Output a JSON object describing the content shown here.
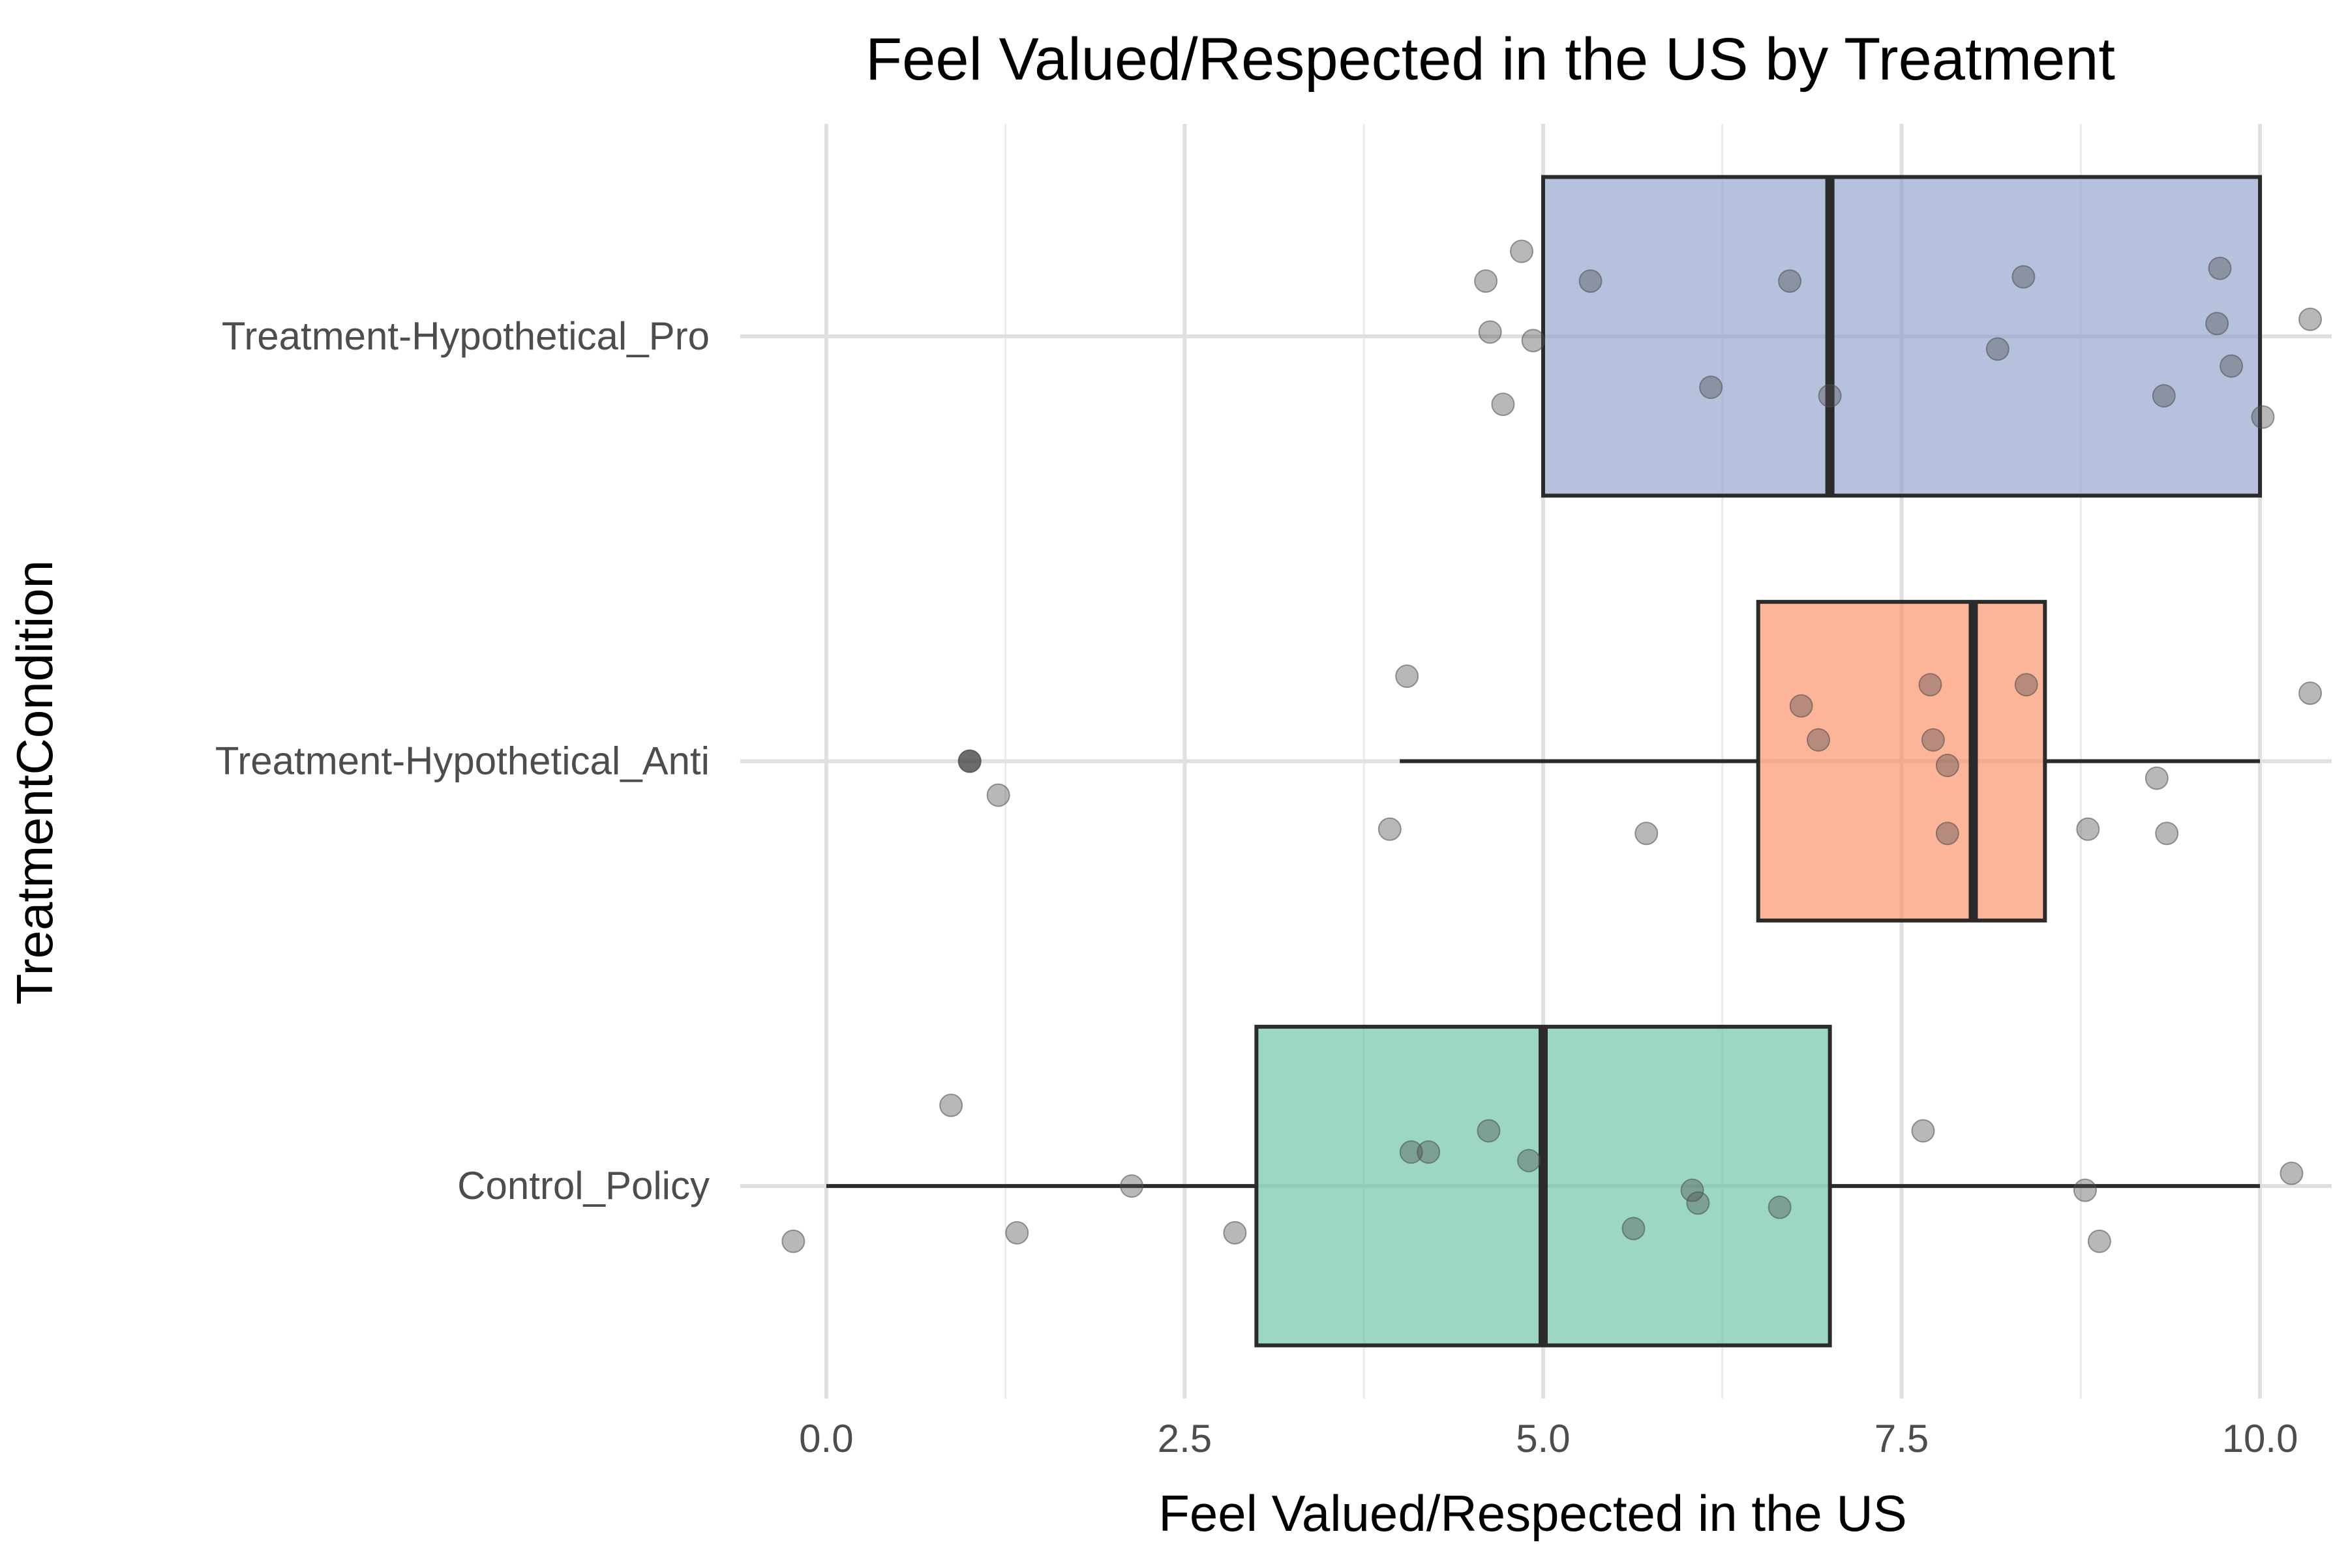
{
  "chart_data": {
    "type": "boxplot",
    "title": "Feel Valued/Respected in the US by Treatment",
    "xlabel": "Feel Valued/Respected in the US",
    "ylabel": "TreatmentCondition",
    "orientation": "horizontal",
    "xlim": [
      -0.6,
      10.5
    ],
    "xticks": [
      0.0,
      2.5,
      5.0,
      7.5,
      10.0
    ],
    "xtick_labels": [
      "0.0",
      "2.5",
      "5.0",
      "7.5",
      "10.0"
    ],
    "grid": true,
    "legend": "none",
    "categories": [
      "Control_Policy",
      "Treatment-Hypothetical_Anti",
      "Treatment-Hypothetical_Pro"
    ],
    "boxes": [
      {
        "category": "Control_Policy",
        "color": "#66c2a5",
        "whisker_low": 0,
        "q1": 3,
        "median": 5,
        "q3": 7,
        "whisker_high": 10,
        "outliers": []
      },
      {
        "category": "Treatment-Hypothetical_Anti",
        "color": "#fc8d62",
        "whisker_low": 4,
        "q1": 6.5,
        "median": 8,
        "q3": 8.5,
        "whisker_high": 10,
        "outliers": [
          1
        ]
      },
      {
        "category": "Treatment-Hypothetical_Pro",
        "color": "#8da0cb",
        "whisker_low": 5,
        "q1": 5,
        "median": 7,
        "q3": 10,
        "whisker_high": 10,
        "outliers": []
      }
    ],
    "jitter_points": [
      {
        "category": "Control_Policy",
        "x": -0.23,
        "y_jitter": 0.13
      },
      {
        "category": "Control_Policy",
        "x": 0.87,
        "y_jitter": -0.19
      },
      {
        "category": "Control_Policy",
        "x": 1.33,
        "y_jitter": 0.11
      },
      {
        "category": "Control_Policy",
        "x": 2.13,
        "y_jitter": 0.0
      },
      {
        "category": "Control_Policy",
        "x": 2.85,
        "y_jitter": 0.11
      },
      {
        "category": "Control_Policy",
        "x": 4.08,
        "y_jitter": -0.08
      },
      {
        "category": "Control_Policy",
        "x": 4.2,
        "y_jitter": -0.08
      },
      {
        "category": "Control_Policy",
        "x": 4.62,
        "y_jitter": -0.13
      },
      {
        "category": "Control_Policy",
        "x": 4.9,
        "y_jitter": -0.06
      },
      {
        "category": "Control_Policy",
        "x": 5.63,
        "y_jitter": 0.1
      },
      {
        "category": "Control_Policy",
        "x": 6.04,
        "y_jitter": 0.01
      },
      {
        "category": "Control_Policy",
        "x": 6.08,
        "y_jitter": 0.04
      },
      {
        "category": "Control_Policy",
        "x": 6.65,
        "y_jitter": 0.05
      },
      {
        "category": "Control_Policy",
        "x": 7.65,
        "y_jitter": -0.13
      },
      {
        "category": "Control_Policy",
        "x": 8.78,
        "y_jitter": 0.01
      },
      {
        "category": "Control_Policy",
        "x": 8.88,
        "y_jitter": 0.13
      },
      {
        "category": "Control_Policy",
        "x": 10.22,
        "y_jitter": -0.03
      },
      {
        "category": "Treatment-Hypothetical_Anti",
        "x": 1.0,
        "y_jitter": 0.0
      },
      {
        "category": "Treatment-Hypothetical_Anti",
        "x": 1.0,
        "y_jitter": 0.0
      },
      {
        "category": "Treatment-Hypothetical_Anti",
        "x": 1.2,
        "y_jitter": 0.08
      },
      {
        "category": "Treatment-Hypothetical_Anti",
        "x": 3.93,
        "y_jitter": 0.16
      },
      {
        "category": "Treatment-Hypothetical_Anti",
        "x": 4.05,
        "y_jitter": -0.2
      },
      {
        "category": "Treatment-Hypothetical_Anti",
        "x": 5.72,
        "y_jitter": 0.17
      },
      {
        "category": "Treatment-Hypothetical_Anti",
        "x": 6.8,
        "y_jitter": -0.13
      },
      {
        "category": "Treatment-Hypothetical_Anti",
        "x": 6.92,
        "y_jitter": -0.05
      },
      {
        "category": "Treatment-Hypothetical_Anti",
        "x": 7.7,
        "y_jitter": -0.18
      },
      {
        "category": "Treatment-Hypothetical_Anti",
        "x": 7.72,
        "y_jitter": -0.05
      },
      {
        "category": "Treatment-Hypothetical_Anti",
        "x": 7.82,
        "y_jitter": 0.01
      },
      {
        "category": "Treatment-Hypothetical_Anti",
        "x": 7.82,
        "y_jitter": 0.17
      },
      {
        "category": "Treatment-Hypothetical_Anti",
        "x": 8.37,
        "y_jitter": -0.18
      },
      {
        "category": "Treatment-Hypothetical_Anti",
        "x": 8.8,
        "y_jitter": 0.16
      },
      {
        "category": "Treatment-Hypothetical_Anti",
        "x": 9.28,
        "y_jitter": 0.04
      },
      {
        "category": "Treatment-Hypothetical_Anti",
        "x": 9.35,
        "y_jitter": 0.17
      },
      {
        "category": "Treatment-Hypothetical_Anti",
        "x": 10.35,
        "y_jitter": -0.16
      },
      {
        "category": "Treatment-Hypothetical_Pro",
        "x": 4.6,
        "y_jitter": -0.13
      },
      {
        "category": "Treatment-Hypothetical_Pro",
        "x": 4.63,
        "y_jitter": -0.01
      },
      {
        "category": "Treatment-Hypothetical_Pro",
        "x": 4.72,
        "y_jitter": 0.16
      },
      {
        "category": "Treatment-Hypothetical_Pro",
        "x": 4.85,
        "y_jitter": -0.2
      },
      {
        "category": "Treatment-Hypothetical_Pro",
        "x": 4.93,
        "y_jitter": 0.01
      },
      {
        "category": "Treatment-Hypothetical_Pro",
        "x": 5.33,
        "y_jitter": -0.13
      },
      {
        "category": "Treatment-Hypothetical_Pro",
        "x": 6.17,
        "y_jitter": 0.12
      },
      {
        "category": "Treatment-Hypothetical_Pro",
        "x": 6.72,
        "y_jitter": -0.13
      },
      {
        "category": "Treatment-Hypothetical_Pro",
        "x": 7.0,
        "y_jitter": 0.14
      },
      {
        "category": "Treatment-Hypothetical_Pro",
        "x": 8.17,
        "y_jitter": 0.03
      },
      {
        "category": "Treatment-Hypothetical_Pro",
        "x": 8.35,
        "y_jitter": -0.14
      },
      {
        "category": "Treatment-Hypothetical_Pro",
        "x": 9.33,
        "y_jitter": 0.14
      },
      {
        "category": "Treatment-Hypothetical_Pro",
        "x": 9.7,
        "y_jitter": -0.03
      },
      {
        "category": "Treatment-Hypothetical_Pro",
        "x": 9.72,
        "y_jitter": -0.16
      },
      {
        "category": "Treatment-Hypothetical_Pro",
        "x": 9.8,
        "y_jitter": 0.07
      },
      {
        "category": "Treatment-Hypothetical_Pro",
        "x": 10.02,
        "y_jitter": 0.19
      },
      {
        "category": "Treatment-Hypothetical_Pro",
        "x": 10.35,
        "y_jitter": -0.04
      }
    ]
  }
}
